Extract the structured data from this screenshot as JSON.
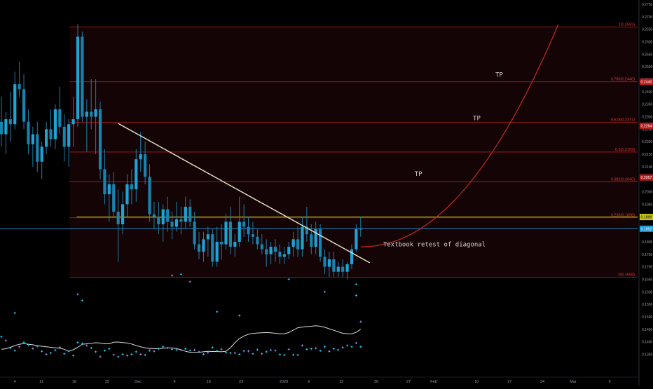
{
  "colors": {
    "background": "#000000",
    "candle": "#1fa2d6",
    "wick": "#1a7fa8",
    "fib_line": "#b71c1c",
    "fib_label": "#e53935",
    "fib_fill": "#140406",
    "level_highlight": "#c6c61a",
    "current_price_line": "#1e9ad6",
    "trendline": "#e8e6c8",
    "projection": "#c62828",
    "sma_line": "#d9d9d9",
    "marker_cyan": "#20c8f0",
    "marker_purple": "#b07cf0",
    "axis_text": "#9a9da8",
    "tp_text": "#d0d0d0"
  },
  "chart_data": {
    "type": "candlestick",
    "title": "",
    "xlabel": "",
    "ylabel": "",
    "ylim": [
      0.127,
      0.2764
    ],
    "price_axis_ticks": [
      "0.2750",
      "0.2700",
      "0.2650",
      "0.2600",
      "0.2550",
      "0.2500",
      "0.2450",
      "0.2400",
      "0.2350",
      "0.2300",
      "0.2250",
      "0.2200",
      "0.2150",
      "0.2100",
      "0.2050",
      "0.2000",
      "0.1950",
      "0.1900",
      "0.1850",
      "0.1800",
      "0.1750",
      "0.1700",
      "0.1650",
      "0.1600",
      "0.1550",
      "0.1500",
      "0.1450",
      "0.1400",
      "0.1350"
    ],
    "time_axis_labels": [
      "4",
      "11",
      "18",
      "25",
      "Dec",
      "9",
      "16",
      "23",
      "2020",
      "6",
      "13",
      "20",
      "27",
      "Feb",
      "10",
      "17",
      "24",
      "Mar",
      "9"
    ],
    "candles": [
      {
        "o": 0.228,
        "h": 0.238,
        "l": 0.218,
        "c": 0.223
      },
      {
        "o": 0.223,
        "h": 0.232,
        "l": 0.215,
        "c": 0.229
      },
      {
        "o": 0.229,
        "h": 0.24,
        "l": 0.22,
        "c": 0.227
      },
      {
        "o": 0.227,
        "h": 0.248,
        "l": 0.225,
        "c": 0.243
      },
      {
        "o": 0.243,
        "h": 0.252,
        "l": 0.238,
        "c": 0.241
      },
      {
        "o": 0.241,
        "h": 0.247,
        "l": 0.225,
        "c": 0.228
      },
      {
        "o": 0.228,
        "h": 0.233,
        "l": 0.215,
        "c": 0.219
      },
      {
        "o": 0.219,
        "h": 0.226,
        "l": 0.21,
        "c": 0.223
      },
      {
        "o": 0.223,
        "h": 0.228,
        "l": 0.208,
        "c": 0.212
      },
      {
        "o": 0.212,
        "h": 0.22,
        "l": 0.205,
        "c": 0.218
      },
      {
        "o": 0.218,
        "h": 0.228,
        "l": 0.215,
        "c": 0.225
      },
      {
        "o": 0.225,
        "h": 0.233,
        "l": 0.218,
        "c": 0.221
      },
      {
        "o": 0.221,
        "h": 0.235,
        "l": 0.217,
        "c": 0.233
      },
      {
        "o": 0.233,
        "h": 0.242,
        "l": 0.223,
        "c": 0.226
      },
      {
        "o": 0.226,
        "h": 0.231,
        "l": 0.212,
        "c": 0.218
      },
      {
        "o": 0.218,
        "h": 0.229,
        "l": 0.21,
        "c": 0.227
      },
      {
        "o": 0.227,
        "h": 0.238,
        "l": 0.218,
        "c": 0.229
      },
      {
        "o": 0.229,
        "h": 0.267,
        "l": 0.226,
        "c": 0.262
      },
      {
        "o": 0.262,
        "h": 0.264,
        "l": 0.228,
        "c": 0.23
      },
      {
        "o": 0.23,
        "h": 0.237,
        "l": 0.216,
        "c": 0.232
      },
      {
        "o": 0.232,
        "h": 0.245,
        "l": 0.225,
        "c": 0.23
      },
      {
        "o": 0.23,
        "h": 0.245,
        "l": 0.215,
        "c": 0.233
      },
      {
        "o": 0.233,
        "h": 0.236,
        "l": 0.205,
        "c": 0.209
      },
      {
        "o": 0.209,
        "h": 0.217,
        "l": 0.195,
        "c": 0.199
      },
      {
        "o": 0.199,
        "h": 0.207,
        "l": 0.188,
        "c": 0.203
      },
      {
        "o": 0.203,
        "h": 0.208,
        "l": 0.19,
        "c": 0.192
      },
      {
        "o": 0.192,
        "h": 0.201,
        "l": 0.172,
        "c": 0.187
      },
      {
        "o": 0.187,
        "h": 0.2,
        "l": 0.183,
        "c": 0.195
      },
      {
        "o": 0.195,
        "h": 0.207,
        "l": 0.19,
        "c": 0.203
      },
      {
        "o": 0.203,
        "h": 0.209,
        "l": 0.195,
        "c": 0.201
      },
      {
        "o": 0.201,
        "h": 0.217,
        "l": 0.196,
        "c": 0.213
      },
      {
        "o": 0.213,
        "h": 0.224,
        "l": 0.208,
        "c": 0.215
      },
      {
        "o": 0.215,
        "h": 0.22,
        "l": 0.203,
        "c": 0.206
      },
      {
        "o": 0.206,
        "h": 0.211,
        "l": 0.188,
        "c": 0.191
      },
      {
        "o": 0.191,
        "h": 0.196,
        "l": 0.185,
        "c": 0.19
      },
      {
        "o": 0.19,
        "h": 0.196,
        "l": 0.183,
        "c": 0.187
      },
      {
        "o": 0.187,
        "h": 0.195,
        "l": 0.18,
        "c": 0.193
      },
      {
        "o": 0.193,
        "h": 0.198,
        "l": 0.184,
        "c": 0.188
      },
      {
        "o": 0.188,
        "h": 0.192,
        "l": 0.181,
        "c": 0.186
      },
      {
        "o": 0.186,
        "h": 0.196,
        "l": 0.184,
        "c": 0.189
      },
      {
        "o": 0.189,
        "h": 0.194,
        "l": 0.183,
        "c": 0.188
      },
      {
        "o": 0.188,
        "h": 0.198,
        "l": 0.185,
        "c": 0.194
      },
      {
        "o": 0.194,
        "h": 0.197,
        "l": 0.186,
        "c": 0.188
      },
      {
        "o": 0.188,
        "h": 0.192,
        "l": 0.177,
        "c": 0.179
      },
      {
        "o": 0.179,
        "h": 0.184,
        "l": 0.173,
        "c": 0.176
      },
      {
        "o": 0.176,
        "h": 0.184,
        "l": 0.172,
        "c": 0.181
      },
      {
        "o": 0.181,
        "h": 0.186,
        "l": 0.174,
        "c": 0.183
      },
      {
        "o": 0.183,
        "h": 0.185,
        "l": 0.17,
        "c": 0.172
      },
      {
        "o": 0.172,
        "h": 0.186,
        "l": 0.17,
        "c": 0.18
      },
      {
        "o": 0.18,
        "h": 0.187,
        "l": 0.173,
        "c": 0.179
      },
      {
        "o": 0.179,
        "h": 0.191,
        "l": 0.177,
        "c": 0.188
      },
      {
        "o": 0.188,
        "h": 0.194,
        "l": 0.175,
        "c": 0.178
      },
      {
        "o": 0.178,
        "h": 0.183,
        "l": 0.174,
        "c": 0.18
      },
      {
        "o": 0.18,
        "h": 0.198,
        "l": 0.178,
        "c": 0.188
      },
      {
        "o": 0.188,
        "h": 0.195,
        "l": 0.182,
        "c": 0.186
      },
      {
        "o": 0.186,
        "h": 0.19,
        "l": 0.18,
        "c": 0.183
      },
      {
        "o": 0.183,
        "h": 0.188,
        "l": 0.179,
        "c": 0.182
      },
      {
        "o": 0.182,
        "h": 0.185,
        "l": 0.177,
        "c": 0.179
      },
      {
        "o": 0.179,
        "h": 0.183,
        "l": 0.175,
        "c": 0.177
      },
      {
        "o": 0.177,
        "h": 0.181,
        "l": 0.17,
        "c": 0.175
      },
      {
        "o": 0.175,
        "h": 0.18,
        "l": 0.171,
        "c": 0.178
      },
      {
        "o": 0.178,
        "h": 0.181,
        "l": 0.172,
        "c": 0.176
      },
      {
        "o": 0.176,
        "h": 0.179,
        "l": 0.171,
        "c": 0.174
      },
      {
        "o": 0.174,
        "h": 0.178,
        "l": 0.171,
        "c": 0.175
      },
      {
        "o": 0.175,
        "h": 0.18,
        "l": 0.173,
        "c": 0.178
      },
      {
        "o": 0.178,
        "h": 0.184,
        "l": 0.174,
        "c": 0.181
      },
      {
        "o": 0.181,
        "h": 0.186,
        "l": 0.174,
        "c": 0.177
      },
      {
        "o": 0.177,
        "h": 0.19,
        "l": 0.174,
        "c": 0.186
      },
      {
        "o": 0.186,
        "h": 0.194,
        "l": 0.18,
        "c": 0.183
      },
      {
        "o": 0.183,
        "h": 0.187,
        "l": 0.175,
        "c": 0.178
      },
      {
        "o": 0.178,
        "h": 0.188,
        "l": 0.175,
        "c": 0.185
      },
      {
        "o": 0.185,
        "h": 0.187,
        "l": 0.172,
        "c": 0.174
      },
      {
        "o": 0.174,
        "h": 0.177,
        "l": 0.167,
        "c": 0.17
      },
      {
        "o": 0.17,
        "h": 0.176,
        "l": 0.166,
        "c": 0.173
      },
      {
        "o": 0.173,
        "h": 0.176,
        "l": 0.166,
        "c": 0.168
      },
      {
        "o": 0.168,
        "h": 0.172,
        "l": 0.166,
        "c": 0.17
      },
      {
        "o": 0.17,
        "h": 0.173,
        "l": 0.166,
        "c": 0.168
      },
      {
        "o": 0.168,
        "h": 0.172,
        "l": 0.165,
        "c": 0.171
      },
      {
        "o": 0.171,
        "h": 0.179,
        "l": 0.169,
        "c": 0.177
      },
      {
        "o": 0.177,
        "h": 0.187,
        "l": 0.176,
        "c": 0.185
      },
      {
        "o": 0.185,
        "h": 0.19,
        "l": 0.182,
        "c": 0.1852
      }
    ],
    "sma": [
      0.137,
      0.1372,
      0.1378,
      0.1385,
      0.139,
      0.1393,
      0.139,
      0.1388,
      0.1384,
      0.1382,
      0.138,
      0.1378,
      0.1376,
      0.1374,
      0.137,
      0.1362,
      0.1368,
      0.1378,
      0.139,
      0.1392,
      0.1394,
      0.1396,
      0.1395,
      0.1392,
      0.1392,
      0.1398,
      0.1399,
      0.1397,
      0.1395,
      0.1391,
      0.1385,
      0.138,
      0.1376,
      0.1373,
      0.1373,
      0.1372,
      0.1374,
      0.1376,
      0.1375,
      0.1373,
      0.1368,
      0.1362,
      0.1358,
      0.1358,
      0.1358,
      0.136,
      0.1362,
      0.1361,
      0.1361,
      0.136,
      0.1362,
      0.1376,
      0.1396,
      0.1413,
      0.1423,
      0.143,
      0.1433,
      0.1435,
      0.1436,
      0.1437,
      0.1436,
      0.1434,
      0.1432,
      0.1432,
      0.1437,
      0.1447,
      0.1456,
      0.1459,
      0.1461,
      0.1462,
      0.1464,
      0.1462,
      0.1458,
      0.1452,
      0.1446,
      0.144,
      0.1434,
      0.1432,
      0.1432,
      0.1438,
      0.145
    ],
    "markers_below": [
      0.142,
      0.1405,
      0.1375,
      0.1365,
      0.138,
      0.1398,
      0.1388,
      0.1373,
      0.1382,
      0.1362,
      0.135,
      0.1355,
      0.1366,
      0.1378,
      0.1352,
      0.1362,
      0.1345,
      0.1397,
      0.1393,
      0.1385,
      0.1375,
      0.136,
      0.134,
      0.1365,
      0.1372,
      0.1348,
      0.134,
      0.135,
      0.1345,
      0.135,
      0.136,
      0.135,
      0.1347,
      0.1365,
      0.1362,
      0.1372,
      0.138,
      0.1375,
      0.137,
      0.1368,
      0.1367,
      0.1372,
      0.1365,
      0.1367,
      0.136,
      0.135,
      0.1357,
      0.1377,
      0.1363,
      0.137,
      0.1357,
      0.1355,
      0.1355,
      0.135,
      0.1363,
      0.1363,
      0.1352,
      0.1368,
      0.1352,
      0.136,
      0.1367,
      0.1365,
      0.1349,
      0.1347,
      0.137,
      0.1348,
      0.1347,
      0.1385,
      0.137,
      0.1372,
      0.1374,
      0.1364,
      0.138,
      0.1362,
      0.1372,
      0.1368,
      0.1377,
      0.1385,
      0.138,
      0.1395,
      0.138
    ],
    "markers_above": [
      {
        "i": 3,
        "v": 0.1515
      },
      {
        "i": 17,
        "v": 0.159
      },
      {
        "i": 18,
        "v": 0.1565
      },
      {
        "i": 38,
        "v": 0.1665
      },
      {
        "i": 40,
        "v": 0.167
      },
      {
        "i": 42,
        "v": 0.164
      },
      {
        "i": 48,
        "v": 0.152
      },
      {
        "i": 53,
        "v": 0.1505
      },
      {
        "i": 64,
        "v": 0.165
      },
      {
        "i": 72,
        "v": 0.16
      },
      {
        "i": 79,
        "v": 0.163
      },
      {
        "i": 80,
        "v": 0.148
      },
      {
        "i": 79,
        "v": 0.1585
      }
    ],
    "fib_levels": [
      {
        "value": 0.2659,
        "label": "1(0.2659)"
      },
      {
        "value": 0.244,
        "label": "0.786(0.2440)"
      },
      {
        "value": 0.2277,
        "label": "0.618(0.2277)"
      },
      {
        "value": 0.2159,
        "label": "0.5(0.2159)"
      },
      {
        "value": 0.204,
        "label": "0.382(0.2040)"
      },
      {
        "value": 0.1896,
        "label": "0.236(0.1896)"
      },
      {
        "value": 0.1658,
        "label": "0(0.1658)"
      }
    ],
    "price_tags": [
      {
        "value": 0.244,
        "label": "0.2440",
        "style": "fib"
      },
      {
        "value": 0.2264,
        "label": "0.2264",
        "style": "fib"
      },
      {
        "value": 0.2057,
        "label": "0.2057",
        "style": "fib"
      },
      {
        "value": 0.1899,
        "label": "0.1899",
        "style": "highlight"
      },
      {
        "value": 0.1852,
        "label": "0.1852",
        "style": "current"
      }
    ],
    "highlight_level": 0.1899,
    "current_price": 0.1852,
    "trendline": {
      "i1": 26,
      "v1": 0.2273,
      "i2": 82,
      "v2": 0.1716
    },
    "projection": {
      "i_start": 80,
      "v_start": 0.178,
      "i_end": 124,
      "v_end": 0.2669
    },
    "tp_labels": [
      {
        "i": 92,
        "v": 0.2063,
        "text": "TP"
      },
      {
        "i": 105,
        "v": 0.2286,
        "text": "TP"
      },
      {
        "i": 110,
        "v": 0.246,
        "text": "TP"
      }
    ],
    "annotation": {
      "i": 85,
      "v": 0.1782,
      "text": "Textbook retest of diagonal"
    }
  }
}
